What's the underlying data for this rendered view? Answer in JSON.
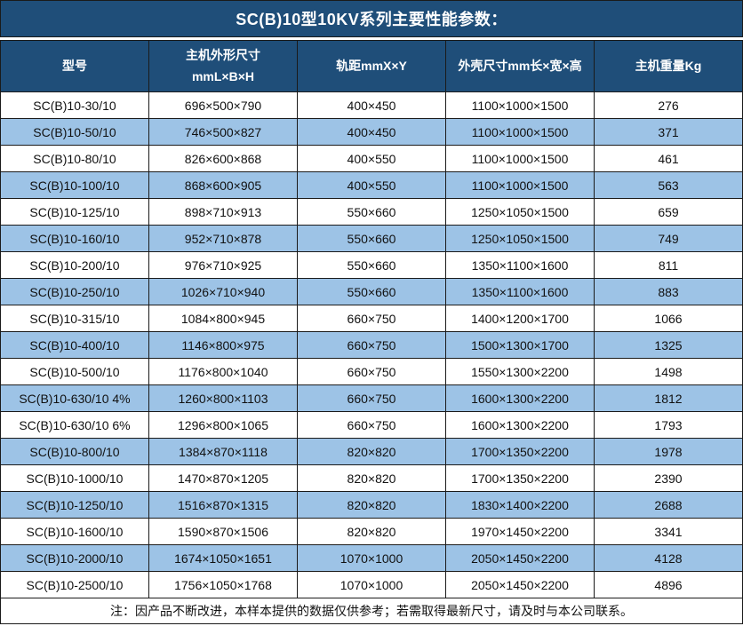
{
  "title": "SC(B)10型10KV系列主要性能参数：",
  "colors": {
    "header_bg": "#1F4E79",
    "alt_row_bg": "#9DC3E6",
    "border": "#1a1a1a",
    "header_text": "#ffffff"
  },
  "table": {
    "headers": [
      "型号",
      "主机外形尺寸\nmmL×B×H",
      "轨距mmX×Y",
      "外壳尺寸mm长×宽×高",
      "主机重量Kg"
    ],
    "rows": [
      [
        "SC(B)10-30/10",
        "696×500×790",
        "400×450",
        "1100×1000×1500",
        "276"
      ],
      [
        "SC(B)10-50/10",
        "746×500×827",
        "400×450",
        "1100×1000×1500",
        "371"
      ],
      [
        "SC(B)10-80/10",
        "826×600×868",
        "400×550",
        "1100×1000×1500",
        "461"
      ],
      [
        "SC(B)10-100/10",
        "868×600×905",
        "400×550",
        "1100×1000×1500",
        "563"
      ],
      [
        "SC(B)10-125/10",
        "898×710×913",
        "550×660",
        "1250×1050×1500",
        "659"
      ],
      [
        "SC(B)10-160/10",
        "952×710×878",
        "550×660",
        "1250×1050×1500",
        "749"
      ],
      [
        "SC(B)10-200/10",
        "976×710×925",
        "550×660",
        "1350×1100×1600",
        "811"
      ],
      [
        "SC(B)10-250/10",
        "1026×710×940",
        "550×660",
        "1350×1100×1600",
        "883"
      ],
      [
        "SC(B)10-315/10",
        "1084×800×945",
        "660×750",
        "1400×1200×1700",
        "1066"
      ],
      [
        "SC(B)10-400/10",
        "1146×800×975",
        "660×750",
        "1500×1300×1700",
        "1325"
      ],
      [
        "SC(B)10-500/10",
        "1176×800×1040",
        "660×750",
        "1550×1300×2200",
        "1498"
      ],
      [
        "SC(B)10-630/10 4%",
        "1260×800×1103",
        "660×750",
        "1600×1300×2200",
        "1812"
      ],
      [
        "SC(B)10-630/10 6%",
        "1296×800×1065",
        "660×750",
        "1600×1300×2200",
        "1793"
      ],
      [
        "SC(B)10-800/10",
        "1384×870×1118",
        "820×820",
        "1700×1350×2200",
        "1978"
      ],
      [
        "SC(B)10-1000/10",
        "1470×870×1205",
        "820×820",
        "1700×1350×2200",
        "2390"
      ],
      [
        "SC(B)10-1250/10",
        "1516×870×1315",
        "820×820",
        "1830×1400×2200",
        "2688"
      ],
      [
        "SC(B)10-1600/10",
        "1590×870×1506",
        "820×820",
        "1970×1450×2200",
        "3341"
      ],
      [
        "SC(B)10-2000/10",
        "1674×1050×1651",
        "1070×1000",
        "2050×1450×2200",
        "4128"
      ],
      [
        "SC(B)10-2500/10",
        "1756×1050×1768",
        "1070×1000",
        "2050×1450×2200",
        "4896"
      ]
    ]
  },
  "footer": {
    "note": "注：因产品不断改进，本样本提供的数据仅供参考；若需取得最新尺寸，请及时与本公司联系。"
  }
}
